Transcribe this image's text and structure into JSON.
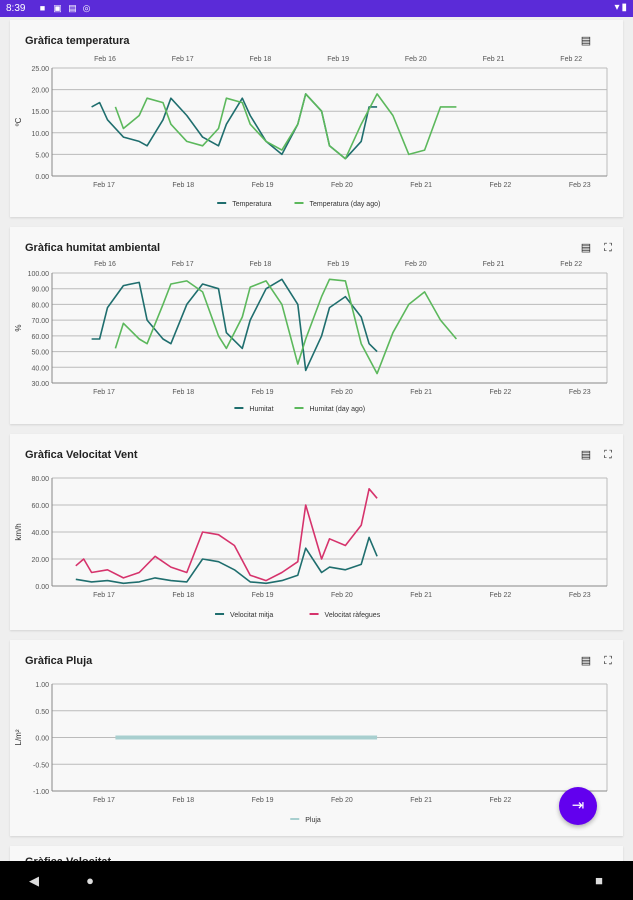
{
  "status": {
    "time": "8:39",
    "icons": [
      "notification-icon",
      "mail-icon",
      "lock-icon",
      "media-icon"
    ],
    "right_icons": [
      "wifi-icon",
      "battery-icon"
    ]
  },
  "fab_menu_icon": "⋯",
  "fab_exit_icon": "⇥",
  "colors": {
    "accent": "#6200ee",
    "status": "#5b2bd8",
    "series_a": "#1f6e6e",
    "series_b": "#5cb85c",
    "series_wind_gust": "#d6336c",
    "rain": "#a8cfcf"
  },
  "charts": [
    {
      "title": "Gràfica temperatura",
      "chart_data": {
        "type": "line",
        "ylabel": "ºC",
        "y_ticks": [
          "25.00",
          "20.00",
          "15.00",
          "10.00",
          "5.00",
          "0.00"
        ],
        "ylim": [
          0,
          25
        ],
        "x_top_labels": [
          "Feb 16",
          "Feb 17",
          "Feb 18",
          "Feb 19",
          "Feb 20",
          "Feb 21",
          "Feb 22"
        ],
        "x_bottom_labels": [
          "Feb 17",
          "Feb 18",
          "Feb 19",
          "Feb 20",
          "Feb 21",
          "Feb 22",
          "Feb 23"
        ],
        "series": [
          {
            "name": "Temperatura",
            "color": "#1f6e6e",
            "x": [
              17.0,
              17.1,
              17.2,
              17.4,
              17.6,
              17.7,
              17.9,
              18.0,
              18.2,
              18.4,
              18.6,
              18.7,
              18.9,
              19.0,
              19.2,
              19.4,
              19.6,
              19.7,
              19.9,
              20.0,
              20.2,
              20.4,
              20.5,
              20.6
            ],
            "values": [
              16,
              17,
              13,
              9,
              8,
              7,
              13,
              18,
              14,
              9,
              7,
              12,
              18,
              14,
              8,
              5,
              12,
              19,
              15,
              7,
              4,
              8,
              16,
              16
            ]
          },
          {
            "name": "Temperatura (day ago)",
            "color": "#5cb85c",
            "x": [
              17.3,
              17.4,
              17.6,
              17.7,
              17.9,
              18.0,
              18.2,
              18.4,
              18.6,
              18.7,
              18.9,
              19.0,
              19.2,
              19.4,
              19.6,
              19.7,
              19.9,
              20.0,
              20.2,
              20.4,
              20.6,
              20.8,
              21.0,
              21.2,
              21.4,
              21.6
            ],
            "values": [
              16,
              11,
              14,
              18,
              17,
              12,
              8,
              7,
              11,
              18,
              17,
              12,
              8,
              6,
              12,
              19,
              15,
              7,
              4,
              12,
              19,
              14,
              5,
              6,
              16,
              16
            ]
          }
        ]
      }
    },
    {
      "title": "Gràfica humitat ambiental",
      "chart_data": {
        "type": "line",
        "ylabel": "%",
        "y_ticks": [
          "100.00",
          "90.00",
          "80.00",
          "70.00",
          "60.00",
          "50.00",
          "40.00",
          "30.00"
        ],
        "ylim": [
          30,
          100
        ],
        "x_top_labels": [
          "Feb 16",
          "Feb 17",
          "Feb 18",
          "Feb 19",
          "Feb 20",
          "Feb 21",
          "Feb 22"
        ],
        "x_bottom_labels": [
          "Feb 17",
          "Feb 18",
          "Feb 19",
          "Feb 20",
          "Feb 21",
          "Feb 22",
          "Feb 23"
        ],
        "series": [
          {
            "name": "Humitat",
            "color": "#1f6e6e",
            "x": [
              17.0,
              17.1,
              17.2,
              17.4,
              17.6,
              17.7,
              17.9,
              18.0,
              18.2,
              18.4,
              18.6,
              18.7,
              18.9,
              19.0,
              19.2,
              19.4,
              19.6,
              19.7,
              19.9,
              20.0,
              20.2,
              20.4,
              20.5,
              20.6
            ],
            "values": [
              58,
              58,
              78,
              92,
              94,
              70,
              58,
              55,
              80,
              93,
              90,
              62,
              52,
              70,
              90,
              96,
              80,
              38,
              60,
              78,
              85,
              72,
              55,
              50
            ]
          },
          {
            "name": "Humitat (day ago)",
            "color": "#5cb85c",
            "x": [
              17.3,
              17.4,
              17.6,
              17.7,
              17.9,
              18.0,
              18.2,
              18.4,
              18.6,
              18.7,
              18.9,
              19.0,
              19.2,
              19.4,
              19.6,
              19.7,
              19.9,
              20.0,
              20.2,
              20.4,
              20.6,
              20.8,
              21.0,
              21.2,
              21.4,
              21.6
            ],
            "values": [
              52,
              68,
              58,
              55,
              80,
              93,
              95,
              88,
              60,
              52,
              72,
              91,
              95,
              80,
              42,
              58,
              85,
              96,
              95,
              55,
              36,
              62,
              80,
              88,
              70,
              58
            ]
          }
        ]
      }
    },
    {
      "title": "Gràfica Velocitat Vent",
      "chart_data": {
        "type": "line",
        "ylabel": "km/h",
        "y_ticks": [
          "80.00",
          "60.00",
          "40.00",
          "20.00",
          "0.00"
        ],
        "ylim": [
          0,
          80
        ],
        "x_bottom_labels": [
          "Feb 17",
          "Feb 18",
          "Feb 19",
          "Feb 20",
          "Feb 21",
          "Feb 22",
          "Feb 23"
        ],
        "series": [
          {
            "name": "Velocitat mitja",
            "color": "#1f6e6e",
            "x": [
              16.8,
              17.0,
              17.2,
              17.4,
              17.6,
              17.8,
              18.0,
              18.2,
              18.4,
              18.6,
              18.8,
              19.0,
              19.2,
              19.4,
              19.6,
              19.7,
              19.9,
              20.0,
              20.2,
              20.4,
              20.5,
              20.6
            ],
            "values": [
              5,
              3,
              4,
              2,
              3,
              6,
              4,
              3,
              20,
              18,
              12,
              3,
              2,
              4,
              8,
              28,
              10,
              14,
              12,
              16,
              36,
              22
            ]
          },
          {
            "name": "Velocitat ràfegues",
            "color": "#d6336c",
            "x": [
              16.8,
              16.9,
              17.0,
              17.2,
              17.4,
              17.6,
              17.8,
              18.0,
              18.2,
              18.4,
              18.6,
              18.8,
              19.0,
              19.2,
              19.4,
              19.6,
              19.7,
              19.9,
              20.0,
              20.2,
              20.4,
              20.5,
              20.6
            ],
            "values": [
              15,
              20,
              10,
              12,
              6,
              10,
              22,
              14,
              10,
              40,
              38,
              30,
              8,
              4,
              10,
              18,
              60,
              20,
              35,
              30,
              45,
              72,
              65
            ]
          }
        ]
      }
    },
    {
      "title": "Gràfica Pluja",
      "chart_data": {
        "type": "bar",
        "ylabel": "L/m²",
        "y_ticks": [
          "1.00",
          "0.50",
          "0.00",
          "-0.50",
          "-1.00"
        ],
        "ylim": [
          -1,
          1
        ],
        "x_bottom_labels": [
          "Feb 17",
          "Feb 18",
          "Feb 19",
          "Feb 20",
          "Feb 21",
          "Feb 22",
          "Feb 23"
        ],
        "series": [
          {
            "name": "Pluja",
            "color": "#a8cfcf",
            "x_range": [
              17.3,
              20.6
            ],
            "values": [
              0
            ]
          }
        ]
      }
    }
  ],
  "peek_title": "Gràfica Velocitat..."
}
